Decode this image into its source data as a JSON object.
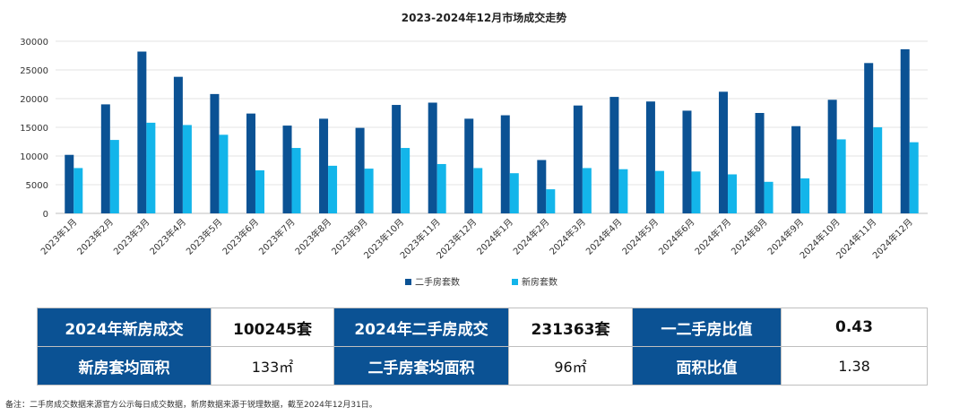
{
  "chart_data": {
    "type": "bar",
    "title": "2023-2024年12月市场成交走势",
    "categories": [
      "2023年1月",
      "2023年2月",
      "2023年3月",
      "2023年4月",
      "2023年5月",
      "2023年6月",
      "2023年7月",
      "2023年8月",
      "2023年9月",
      "2023年10月",
      "2023年11月",
      "2023年12月",
      "2024年1月",
      "2024年2月",
      "2024年3月",
      "2024年4月",
      "2024年5月",
      "2024年6月",
      "2024年7月",
      "2024年8月",
      "2024年9月",
      "2024年10月",
      "2024年11月",
      "2024年12月"
    ],
    "series": [
      {
        "name": "二手房套数",
        "color": "#0b5294",
        "values": [
          10200,
          19000,
          28200,
          23800,
          20800,
          17400,
          15300,
          16500,
          14900,
          18900,
          19300,
          16500,
          17100,
          9300,
          18800,
          20300,
          19500,
          17900,
          21200,
          17500,
          15200,
          19800,
          26200,
          28600
        ]
      },
      {
        "name": "新房套数",
        "color": "#13b5ea",
        "values": [
          7900,
          12800,
          15800,
          15400,
          13700,
          7500,
          11400,
          8300,
          7800,
          11400,
          8600,
          7900,
          7000,
          4200,
          7900,
          7700,
          7400,
          7300,
          6800,
          5500,
          6100,
          12900,
          15000,
          12400
        ]
      }
    ],
    "yticks": [
      0,
      5000,
      10000,
      15000,
      20000,
      25000,
      30000
    ],
    "ylim": [
      0,
      30000
    ],
    "grid": true,
    "legend_position": "bottom-center"
  },
  "summary": {
    "row1": {
      "label1": "2024年新房成交",
      "value1": "100245套",
      "label2": "2024年二手房成交",
      "value2": "231363套",
      "label3": "一二手房比值",
      "value3": "0.43"
    },
    "row2": {
      "label1": "新房套均面积",
      "value1": "133㎡",
      "label2": "二手房套均面积",
      "value2": "96㎡",
      "label3": "面积比值",
      "value3": "1.38"
    }
  },
  "footnote": "备注：二手房成交数据来源官方公示每日成交数据，新房数据来源于锐理数据，截至2024年12月31日。"
}
